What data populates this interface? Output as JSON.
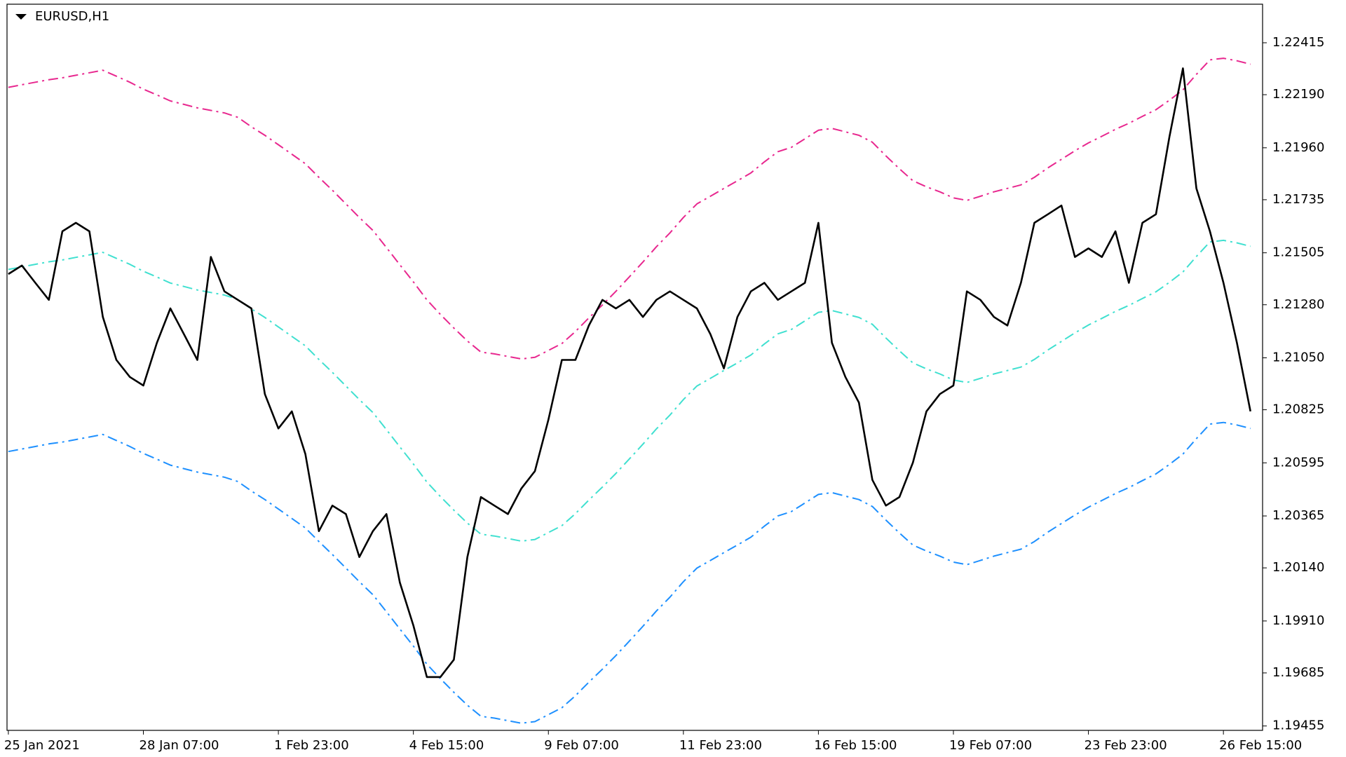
{
  "chart_data": {
    "type": "line",
    "title": "EURUSD,H1",
    "categories": [
      "25 Jan 2021",
      null,
      null,
      null,
      null,
      null,
      null,
      null,
      null,
      null,
      "28 Jan 07:00",
      null,
      null,
      null,
      null,
      null,
      null,
      null,
      null,
      null,
      "1 Feb 23:00",
      null,
      null,
      null,
      null,
      null,
      null,
      null,
      null,
      null,
      "4 Feb 15:00",
      null,
      null,
      null,
      null,
      null,
      null,
      null,
      null,
      null,
      "9 Feb 07:00",
      null,
      null,
      null,
      null,
      null,
      null,
      null,
      null,
      null,
      "11 Feb 23:00",
      null,
      null,
      null,
      null,
      null,
      null,
      null,
      null,
      null,
      "16 Feb 15:00",
      null,
      null,
      null,
      null,
      null,
      null,
      null,
      null,
      null,
      "19 Feb 07:00",
      null,
      null,
      null,
      null,
      null,
      null,
      null,
      null,
      null,
      "23 Feb 23:00",
      null,
      null,
      null,
      null,
      null,
      null,
      null,
      null,
      null,
      "26 Feb 15:00",
      null,
      null
    ],
    "series": [
      {
        "color": "#e8288f",
        "style": "dashed",
        "values": [
          1.22222,
          1.22233,
          1.22244,
          1.22255,
          1.22263,
          1.22274,
          1.22285,
          1.22296,
          1.2227,
          1.22244,
          1.22214,
          1.22189,
          1.22163,
          1.22148,
          1.22133,
          1.22122,
          1.22111,
          1.22092,
          1.22051,
          1.22014,
          1.21973,
          1.21932,
          1.21891,
          1.21832,
          1.21776,
          1.21717,
          1.21658,
          1.21602,
          1.21528,
          1.21453,
          1.21379,
          1.21301,
          1.21238,
          1.21179,
          1.21123,
          1.21075,
          1.21067,
          1.21056,
          1.21045,
          1.21052,
          1.21082,
          1.21112,
          1.21164,
          1.21223,
          1.21279,
          1.21338,
          1.21401,
          1.21465,
          1.21531,
          1.21591,
          1.21658,
          1.21717,
          1.2175,
          1.21784,
          1.21817,
          1.21851,
          1.21899,
          1.21943,
          1.21962,
          1.21999,
          1.22036,
          1.22044,
          1.22029,
          1.22014,
          1.21984,
          1.21925,
          1.21869,
          1.21817,
          1.21791,
          1.21769,
          1.21743,
          1.21732,
          1.2175,
          1.21769,
          1.21784,
          1.21799,
          1.21832,
          1.21873,
          1.2191,
          1.21947,
          1.21981,
          1.2201,
          1.2204,
          1.22066,
          1.22096,
          1.22125,
          1.22166,
          1.22211,
          1.22278,
          1.22341,
          1.22348,
          1.22337,
          1.22322
        ]
      },
      {
        "color": "#40e0d0",
        "style": "dashed",
        "values": [
          1.21433,
          1.21444,
          1.21455,
          1.21466,
          1.21474,
          1.21485,
          1.21496,
          1.21507,
          1.21481,
          1.21455,
          1.21425,
          1.214,
          1.21374,
          1.21359,
          1.21344,
          1.21333,
          1.21322,
          1.21303,
          1.21262,
          1.21225,
          1.21184,
          1.21143,
          1.21102,
          1.21043,
          1.20987,
          1.20928,
          1.20869,
          1.20813,
          1.20739,
          1.20664,
          1.2059,
          1.20512,
          1.20449,
          1.2039,
          1.20334,
          1.20286,
          1.20278,
          1.20267,
          1.20256,
          1.20263,
          1.20293,
          1.20323,
          1.20375,
          1.20434,
          1.2049,
          1.20549,
          1.20612,
          1.20676,
          1.20742,
          1.20802,
          1.20869,
          1.20928,
          1.20961,
          1.20995,
          1.21028,
          1.21062,
          1.2111,
          1.21154,
          1.21173,
          1.2121,
          1.21247,
          1.21255,
          1.2124,
          1.21225,
          1.21195,
          1.21136,
          1.2108,
          1.21028,
          1.21002,
          1.2098,
          1.20954,
          1.20943,
          1.20961,
          1.2098,
          1.20995,
          1.2101,
          1.21043,
          1.21084,
          1.21121,
          1.21158,
          1.21192,
          1.21221,
          1.21251,
          1.21277,
          1.21307,
          1.21336,
          1.21377,
          1.21422,
          1.21489,
          1.21552,
          1.21559,
          1.21548,
          1.21533
        ]
      },
      {
        "color": "#1e90ff",
        "style": "dashed",
        "values": [
          1.20644,
          1.20655,
          1.20666,
          1.20677,
          1.20685,
          1.20696,
          1.20707,
          1.20718,
          1.20692,
          1.20666,
          1.20636,
          1.20611,
          1.20585,
          1.2057,
          1.20555,
          1.20544,
          1.20533,
          1.20514,
          1.20473,
          1.20436,
          1.20395,
          1.20354,
          1.20313,
          1.20254,
          1.20198,
          1.20139,
          1.2008,
          1.20024,
          1.1995,
          1.19875,
          1.19801,
          1.19723,
          1.1966,
          1.19601,
          1.19545,
          1.19497,
          1.19489,
          1.19478,
          1.19467,
          1.19474,
          1.19504,
          1.19534,
          1.19586,
          1.19645,
          1.19701,
          1.1976,
          1.19823,
          1.19887,
          1.19953,
          1.20013,
          1.2008,
          1.20139,
          1.20172,
          1.20206,
          1.20239,
          1.20273,
          1.20321,
          1.20365,
          1.20384,
          1.20421,
          1.20458,
          1.20466,
          1.20451,
          1.20436,
          1.20406,
          1.20347,
          1.20291,
          1.20239,
          1.20213,
          1.20191,
          1.20165,
          1.20154,
          1.20172,
          1.20191,
          1.20206,
          1.20221,
          1.20254,
          1.20295,
          1.20332,
          1.20369,
          1.20403,
          1.20432,
          1.20462,
          1.20488,
          1.20518,
          1.20547,
          1.20588,
          1.20633,
          1.207,
          1.20763,
          1.2077,
          1.20759,
          1.20744
        ]
      },
      {
        "color": "#000000",
        "style": "solid",
        "values": [
          1.21413,
          1.2145,
          1.21375,
          1.21301,
          1.21598,
          1.21635,
          1.21598,
          1.21227,
          1.21041,
          1.20967,
          1.2093,
          1.21115,
          1.21264,
          1.21153,
          1.21041,
          1.21487,
          1.21338,
          1.21301,
          1.21264,
          1.20893,
          1.20744,
          1.20818,
          1.20633,
          1.20299,
          1.2041,
          1.20373,
          1.20187,
          1.20299,
          1.20373,
          1.20076,
          1.1989,
          1.19667,
          1.19667,
          1.19742,
          1.20187,
          1.20447,
          1.2041,
          1.20373,
          1.20484,
          1.20559,
          1.20781,
          1.21041,
          1.21041,
          1.2119,
          1.21301,
          1.21264,
          1.21301,
          1.21227,
          1.21301,
          1.21338,
          1.21301,
          1.21264,
          1.21153,
          1.21004,
          1.21227,
          1.21338,
          1.21375,
          1.21301,
          1.21338,
          1.21375,
          1.21635,
          1.21115,
          1.20967,
          1.20856,
          1.20521,
          1.2041,
          1.20447,
          1.20596,
          1.20818,
          1.20893,
          1.2093,
          1.21338,
          1.21301,
          1.21227,
          1.2119,
          1.21375,
          1.21635,
          1.21672,
          1.2171,
          1.21487,
          1.21524,
          1.21487,
          1.21598,
          1.21375,
          1.21635,
          1.21672,
          1.22007,
          1.22304,
          1.21784,
          1.21598,
          1.21375,
          1.21115,
          1.20818
        ]
      }
    ],
    "ylim": [
      1.19436,
      1.22582
    ],
    "yticks": [
      1.22415,
      {
        "value": 1.2219,
        "label": "1.22190"
      },
      {
        "value": 1.2196,
        "label": "1.21960"
      },
      1.21735,
      1.21505,
      {
        "value": 1.2128,
        "label": "1.21280"
      },
      {
        "value": 1.2105,
        "label": "1.21050"
      },
      1.20825,
      1.20595,
      1.20365,
      {
        "value": 1.2014,
        "label": "1.20140"
      },
      {
        "value": 1.1991,
        "label": "1.19910"
      },
      1.19685,
      1.19455
    ],
    "grid": false
  }
}
